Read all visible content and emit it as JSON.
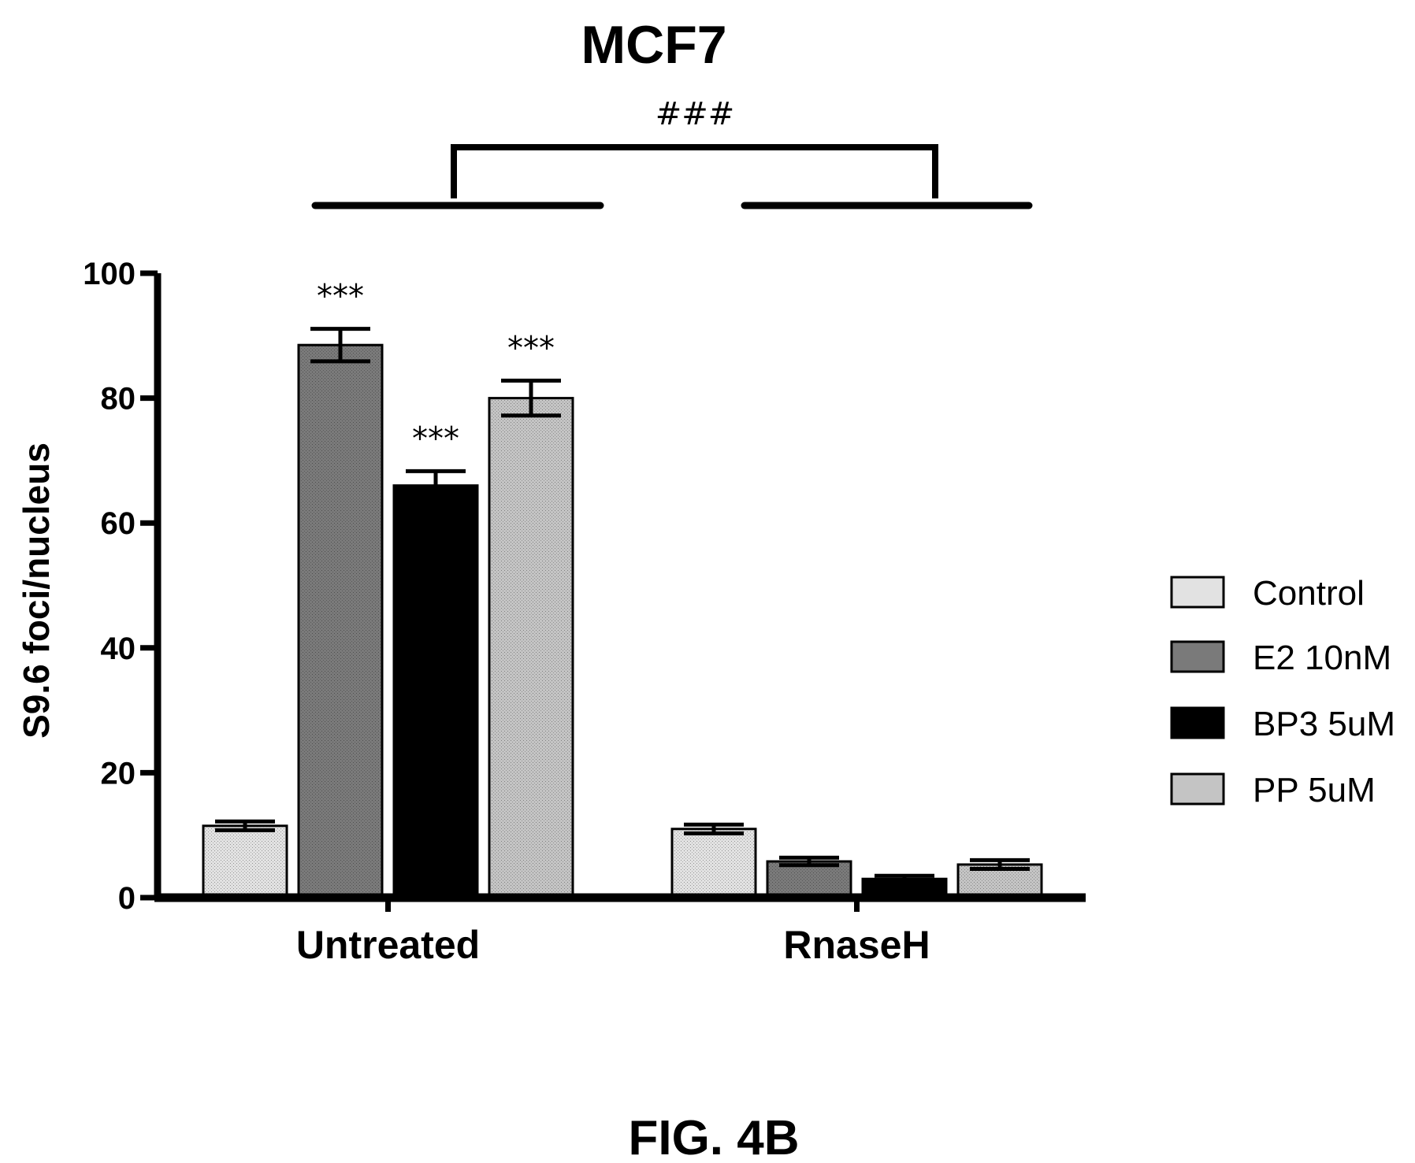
{
  "figure": {
    "caption": "FIG. 4B"
  },
  "chart_data": {
    "type": "bar",
    "title": "MCF7",
    "xlabel": "",
    "ylabel": "S9.6 foci/nucleus",
    "ylim": [
      0,
      100
    ],
    "yticks": [
      0,
      20,
      40,
      60,
      80,
      100
    ],
    "categories": [
      "Untreated",
      "RnaseH"
    ],
    "series": [
      {
        "name": "Control",
        "values": [
          11.5,
          11.0
        ],
        "errors": [
          0.7,
          0.7
        ],
        "color": "#e2e2e2"
      },
      {
        "name": "E2 10nM",
        "values": [
          88.5,
          5.8
        ],
        "errors": [
          2.6,
          0.6
        ],
        "color": "#7a7a7a"
      },
      {
        "name": "BP3 5uM",
        "values": [
          66.0,
          3.0
        ],
        "errors": [
          2.3,
          0.5
        ],
        "color": "#000000"
      },
      {
        "name": "PP 5uM",
        "values": [
          80.0,
          5.3
        ],
        "errors": [
          2.8,
          0.7
        ],
        "color": "#c4c4c4"
      }
    ],
    "significance": {
      "per_bar": [
        {
          "category": "Untreated",
          "series": "E2 10nM",
          "label": "***"
        },
        {
          "category": "Untreated",
          "series": "BP3 5uM",
          "label": "***"
        },
        {
          "category": "Untreated",
          "series": "PP 5uM",
          "label": "***"
        }
      ],
      "group_bracket": {
        "between": [
          "Untreated",
          "RnaseH"
        ],
        "label": "###"
      }
    },
    "legend_position": "right",
    "grid": false
  }
}
